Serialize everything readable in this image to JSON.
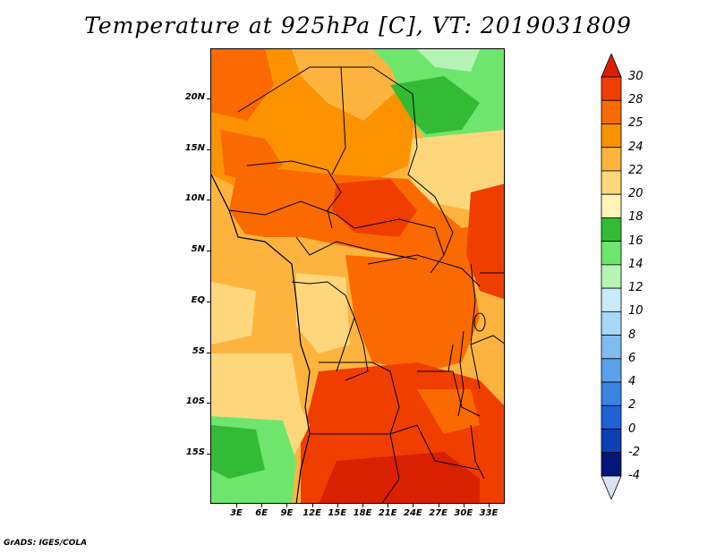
{
  "title": "Temperature at 925hPa [C], VT: 2019031809",
  "credit": "GrADS: IGES/COLA",
  "map": {
    "lat_labels": [
      {
        "text": "20N",
        "lat": 20
      },
      {
        "text": "15N",
        "lat": 15
      },
      {
        "text": "10N",
        "lat": 10
      },
      {
        "text": "5N",
        "lat": 5
      },
      {
        "text": "EQ",
        "lat": 0
      },
      {
        "text": "5S",
        "lat": -5
      },
      {
        "text": "10S",
        "lat": -10
      },
      {
        "text": "15S",
        "lat": -15
      }
    ],
    "lon_labels": [
      {
        "text": "3E",
        "lon": 3
      },
      {
        "text": "6E",
        "lon": 6
      },
      {
        "text": "9E",
        "lon": 9
      },
      {
        "text": "12E",
        "lon": 12
      },
      {
        "text": "15E",
        "lon": 15
      },
      {
        "text": "18E",
        "lon": 18
      },
      {
        "text": "21E",
        "lon": 21
      },
      {
        "text": "24E",
        "lon": 24
      },
      {
        "text": "27E",
        "lon": 27
      },
      {
        "text": "30E",
        "lon": 30
      },
      {
        "text": "33E",
        "lon": 33
      }
    ]
  },
  "colorbar": {
    "levels": [
      "30",
      "28",
      "25",
      "24",
      "22",
      "20",
      "18",
      "16",
      "14",
      "12",
      "10",
      "8",
      "6",
      "4",
      "2",
      "0",
      "-2",
      "-4"
    ],
    "colors": [
      "#d92000",
      "#f03e00",
      "#fa6a00",
      "#fc9200",
      "#fdb43e",
      "#fed77c",
      "#fff4b5",
      "#34bb35",
      "#6ee66e",
      "#b6f4b6",
      "#c8ecfa",
      "#a7d8f7",
      "#7fbdf1",
      "#5ba1ea",
      "#3b84e2",
      "#1f62d6",
      "#0d3fb5",
      "#031577",
      "#dce1f5"
    ],
    "top_triangle_color": "#d92000",
    "bottom_triangle_color": "#dce1f5"
  }
}
